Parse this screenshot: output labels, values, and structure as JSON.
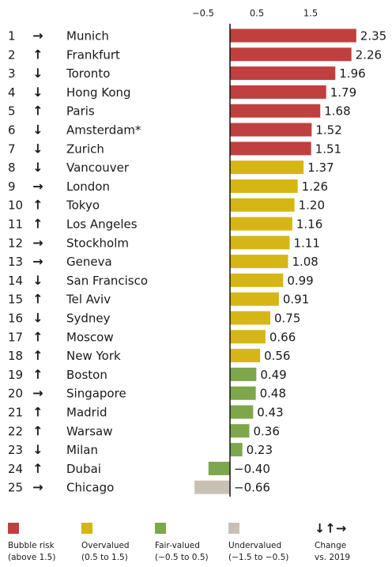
{
  "chart_data": {
    "type": "bar",
    "orientation": "horizontal",
    "ranks": [
      1,
      2,
      3,
      4,
      5,
      6,
      7,
      8,
      9,
      10,
      11,
      12,
      13,
      14,
      15,
      16,
      17,
      18,
      19,
      20,
      21,
      22,
      23,
      24,
      25
    ],
    "changes": [
      "→",
      "↑",
      "↓",
      "↓",
      "↑",
      "↓",
      "↓",
      "↓",
      "→",
      "↑",
      "↑",
      "→",
      "→",
      "↓",
      "↑",
      "↓",
      "↑",
      "↑",
      "↑",
      "→",
      "↑",
      "↑",
      "↓",
      "↑",
      "→"
    ],
    "categories": [
      "Munich",
      "Frankfurt",
      "Toronto",
      "Hong Kong",
      "Paris",
      "Amsterdam*",
      "Zurich",
      "Vancouver",
      "London",
      "Tokyo",
      "Los Angeles",
      "Stockholm",
      "Geneva",
      "San Francisco",
      "Tel Aviv",
      "Sydney",
      "Moscow",
      "New York",
      "Boston",
      "Singapore",
      "Madrid",
      "Warsaw",
      "Milan",
      "Dubai",
      "Chicago"
    ],
    "values": [
      2.35,
      2.26,
      1.96,
      1.79,
      1.68,
      1.52,
      1.51,
      1.37,
      1.26,
      1.2,
      1.16,
      1.11,
      1.08,
      0.99,
      0.91,
      0.75,
      0.66,
      0.56,
      0.49,
      0.48,
      0.43,
      0.36,
      0.23,
      -0.4,
      -0.66
    ],
    "value_labels": [
      "2.35",
      "2.26",
      "1.96",
      "1.79",
      "1.68",
      "1.52",
      "1.51",
      "1.37",
      "1.26",
      "1.20",
      "1.16",
      "1.11",
      "1.08",
      "0.99",
      "0.91",
      "0.75",
      "0.66",
      "0.56",
      "0.49",
      "0.48",
      "0.43",
      "0.36",
      "0.23",
      "−0.40",
      "−0.66"
    ],
    "colors": [
      "#c0403f",
      "#c0403f",
      "#c0403f",
      "#c0403f",
      "#c0403f",
      "#c0403f",
      "#c0403f",
      "#d6b614",
      "#d6b614",
      "#d6b614",
      "#d6b614",
      "#d6b614",
      "#d6b614",
      "#d6b614",
      "#d6b614",
      "#d6b614",
      "#d6b614",
      "#d6b614",
      "#7ea64b",
      "#7ea64b",
      "#7ea64b",
      "#7ea64b",
      "#7ea64b",
      "#7ea64b",
      "#c9c0b4"
    ],
    "xlim": [
      -0.7,
      2.4
    ],
    "xticks": [
      {
        "value": -0.5,
        "label": "−0.5"
      },
      0.5,
      1.5
    ],
    "legend": [
      {
        "color": "#c0403f",
        "label": [
          "Bubble risk",
          "(above 1.5)"
        ]
      },
      {
        "color": "#d6b614",
        "label": [
          "Overvalued",
          "(0.5 to 1.5)"
        ]
      },
      {
        "color": "#7ea64b",
        "label": [
          "Fair-valued",
          "(−0.5 to 0.5)"
        ]
      },
      {
        "color": "#c9c0b4",
        "label": [
          "Undervalued",
          "(−1.5 to −0.5)"
        ]
      },
      {
        "symbol": "↓↑→",
        "label": [
          "Change",
          "vs. 2019"
        ]
      }
    ]
  }
}
